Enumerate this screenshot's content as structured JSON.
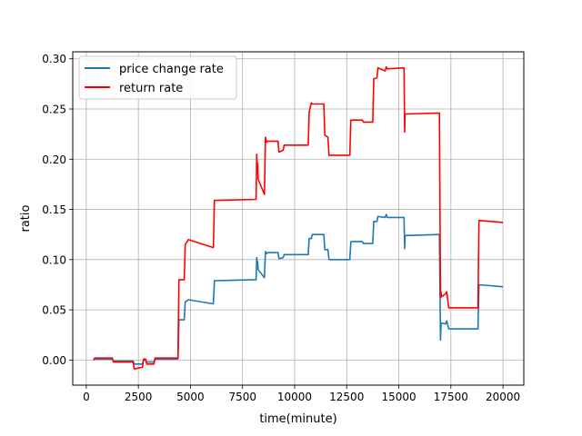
{
  "chart_data": {
    "type": "line",
    "title": "",
    "xlabel": "time(minute)",
    "ylabel": "ratio",
    "xlim": [
      -650,
      21000
    ],
    "ylim": [
      -0.025,
      0.307
    ],
    "xticks": [
      0,
      2500,
      5000,
      7500,
      10000,
      12500,
      15000,
      17500,
      20000
    ],
    "xtick_labels": [
      "0",
      "2500",
      "5000",
      "7500",
      "10000",
      "12500",
      "15000",
      "17500",
      "20000"
    ],
    "yticks": [
      0.0,
      0.05,
      0.1,
      0.15,
      0.2,
      0.25,
      0.3
    ],
    "ytick_labels": [
      "0.00",
      "0.05",
      "0.10",
      "0.15",
      "0.20",
      "0.25",
      "0.30"
    ],
    "grid": true,
    "legend": "top-left",
    "series": [
      {
        "name": "price change rate",
        "color": "#1f77b4",
        "points": [
          [
            350,
            0.0
          ],
          [
            400,
            0.001
          ],
          [
            1250,
            0.001
          ],
          [
            1300,
            -0.001
          ],
          [
            2250,
            -0.001
          ],
          [
            2300,
            -0.004
          ],
          [
            2700,
            -0.004
          ],
          [
            2750,
            0.0
          ],
          [
            2850,
            0.0
          ],
          [
            2900,
            -0.002
          ],
          [
            3250,
            -0.002
          ],
          [
            3300,
            0.001
          ],
          [
            4400,
            0.001
          ],
          [
            4450,
            0.04
          ],
          [
            4700,
            0.04
          ],
          [
            4750,
            0.058
          ],
          [
            4900,
            0.06
          ],
          [
            6100,
            0.056
          ],
          [
            6150,
            0.079
          ],
          [
            8150,
            0.08
          ],
          [
            8180,
            0.102
          ],
          [
            8200,
            0.097
          ],
          [
            8230,
            0.098
          ],
          [
            8250,
            0.09
          ],
          [
            8550,
            0.082
          ],
          [
            8600,
            0.108
          ],
          [
            8650,
            0.106
          ],
          [
            8700,
            0.107
          ],
          [
            9200,
            0.107
          ],
          [
            9250,
            0.101
          ],
          [
            9450,
            0.102
          ],
          [
            9500,
            0.105
          ],
          [
            10650,
            0.105
          ],
          [
            10700,
            0.121
          ],
          [
            10800,
            0.121
          ],
          [
            10850,
            0.125
          ],
          [
            11400,
            0.125
          ],
          [
            11450,
            0.11
          ],
          [
            11600,
            0.11
          ],
          [
            11650,
            0.1
          ],
          [
            12650,
            0.1
          ],
          [
            12700,
            0.118
          ],
          [
            13250,
            0.118
          ],
          [
            13300,
            0.116
          ],
          [
            13750,
            0.116
          ],
          [
            13800,
            0.138
          ],
          [
            13950,
            0.138
          ],
          [
            14000,
            0.143
          ],
          [
            14350,
            0.142
          ],
          [
            14400,
            0.145
          ],
          [
            14450,
            0.142
          ],
          [
            15250,
            0.142
          ],
          [
            15280,
            0.111
          ],
          [
            15300,
            0.124
          ],
          [
            16950,
            0.125
          ],
          [
            17000,
            0.02
          ],
          [
            17030,
            0.036
          ],
          [
            17050,
            0.037
          ],
          [
            17250,
            0.036
          ],
          [
            17300,
            0.039
          ],
          [
            17400,
            0.031
          ],
          [
            18800,
            0.031
          ],
          [
            18850,
            0.075
          ],
          [
            20000,
            0.073
          ]
        ]
      },
      {
        "name": "return rate",
        "color": "#ff0000",
        "points": [
          [
            350,
            0.0
          ],
          [
            400,
            0.002
          ],
          [
            1250,
            0.002
          ],
          [
            1300,
            -0.002
          ],
          [
            2250,
            -0.002
          ],
          [
            2300,
            -0.009
          ],
          [
            2700,
            -0.007
          ],
          [
            2750,
            0.001
          ],
          [
            2850,
            0.001
          ],
          [
            2900,
            -0.004
          ],
          [
            3250,
            -0.004
          ],
          [
            3300,
            0.002
          ],
          [
            4400,
            0.002
          ],
          [
            4450,
            0.08
          ],
          [
            4700,
            0.08
          ],
          [
            4750,
            0.115
          ],
          [
            4900,
            0.12
          ],
          [
            6100,
            0.112
          ],
          [
            6150,
            0.159
          ],
          [
            8150,
            0.16
          ],
          [
            8180,
            0.205
          ],
          [
            8200,
            0.194
          ],
          [
            8230,
            0.196
          ],
          [
            8250,
            0.18
          ],
          [
            8550,
            0.165
          ],
          [
            8600,
            0.222
          ],
          [
            8650,
            0.217
          ],
          [
            8700,
            0.218
          ],
          [
            9200,
            0.218
          ],
          [
            9250,
            0.207
          ],
          [
            9450,
            0.209
          ],
          [
            9500,
            0.214
          ],
          [
            10650,
            0.214
          ],
          [
            10700,
            0.247
          ],
          [
            10800,
            0.256
          ],
          [
            10850,
            0.255
          ],
          [
            11400,
            0.255
          ],
          [
            11450,
            0.224
          ],
          [
            11600,
            0.222
          ],
          [
            11650,
            0.204
          ],
          [
            12650,
            0.204
          ],
          [
            12700,
            0.239
          ],
          [
            13250,
            0.239
          ],
          [
            13300,
            0.237
          ],
          [
            13750,
            0.237
          ],
          [
            13800,
            0.28
          ],
          [
            13950,
            0.281
          ],
          [
            14000,
            0.291
          ],
          [
            14350,
            0.288
          ],
          [
            14400,
            0.292
          ],
          [
            14450,
            0.29
          ],
          [
            15250,
            0.291
          ],
          [
            15280,
            0.227
          ],
          [
            15300,
            0.245
          ],
          [
            16950,
            0.246
          ],
          [
            17000,
            0.062
          ],
          [
            17030,
            0.068
          ],
          [
            17050,
            0.063
          ],
          [
            17250,
            0.066
          ],
          [
            17300,
            0.068
          ],
          [
            17400,
            0.052
          ],
          [
            18800,
            0.052
          ],
          [
            18850,
            0.139
          ],
          [
            20000,
            0.137
          ]
        ]
      }
    ]
  }
}
